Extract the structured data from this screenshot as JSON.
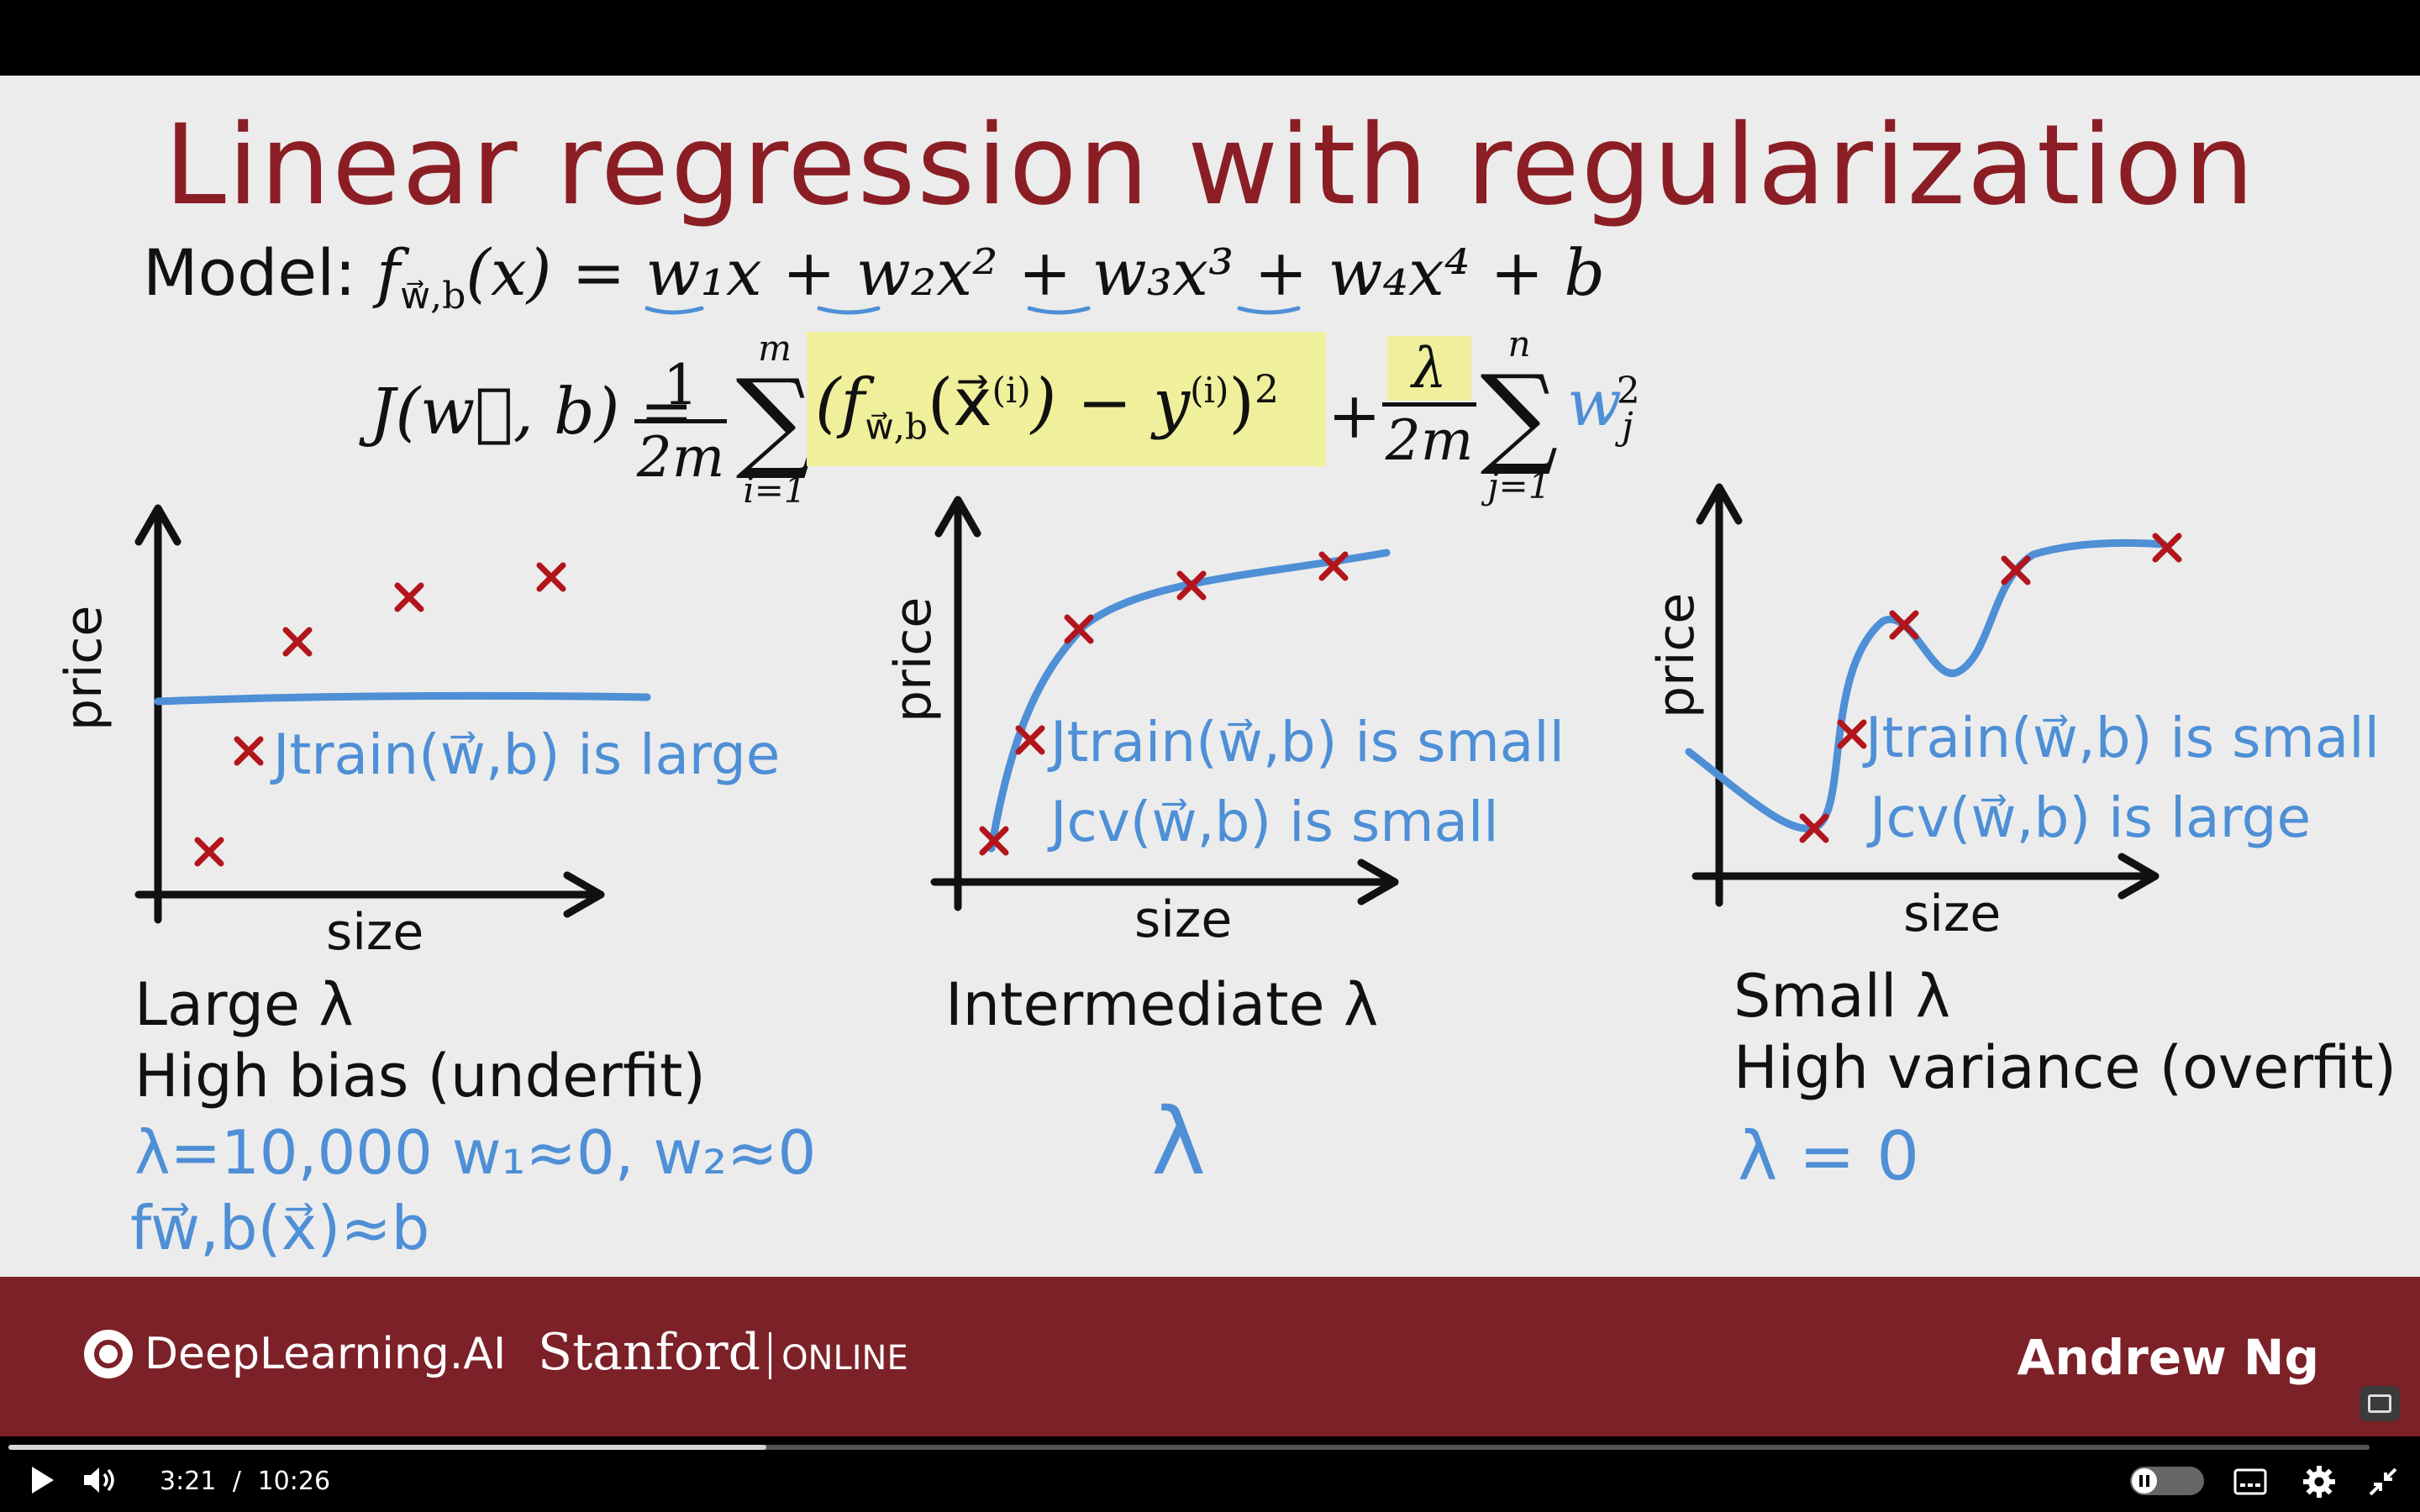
{
  "slide": {
    "title": "Linear regression with regularization",
    "model_label": "Model:",
    "model_formula": {
      "f": "f",
      "sub": "w⃗,b",
      "rest": "(x) = w₁x + w₂x² + w₃x³ + w₄x⁴ + b"
    },
    "cost_formula": {
      "lhs": "J(w⃗, b) =",
      "frac1_num": "1",
      "frac1_den": "2m",
      "sum1_upper": "m",
      "sum1_lower": "i=1",
      "error_term": "(f",
      "error_sub": "w⃗,b",
      "error_rest": "(x⃗",
      "error_sup1": "(i)",
      "error_minus": ") − y",
      "error_sup2": "(i)",
      "error_close": ")",
      "error_power": "2",
      "plus": "+",
      "frac2_num": "λ",
      "frac2_den": "2m",
      "sum2_upper": "n",
      "sum2_lower": "j=1",
      "reg_term": "w",
      "reg_sub": "j",
      "reg_sup": "2"
    },
    "plots": [
      {
        "ylabel": "price",
        "xlabel": "size",
        "caption_line1": "Large λ",
        "caption_line2": "High bias (underfit)",
        "note_train": "Jtrain(w⃗,b) is large",
        "note_lambda": "λ=10,000   w₁≈0, w₂≈0",
        "note_f": "fw⃗,b(x⃗)≈b"
      },
      {
        "ylabel": "price",
        "xlabel": "size",
        "caption_line1": "Intermediate λ",
        "note_train": "Jtrain(w⃗,b) is small",
        "note_cv": "Jcv(w⃗,b) is small",
        "note_lambda": "λ"
      },
      {
        "ylabel": "price",
        "xlabel": "size",
        "caption_line1": "Small λ",
        "caption_line2": "High variance (overfit)",
        "note_train": "Jtrain(w⃗,b) is small",
        "note_cv": "Jcv(w⃗,b) is large",
        "note_lambda": "λ = 0"
      }
    ]
  },
  "footer": {
    "logo_deeplearning": "DeepLearning.AI",
    "logo_stanford": "Stanford",
    "logo_online": "ONLINE",
    "presenter": "Andrew Ng"
  },
  "player": {
    "current_time": "3:21",
    "separator": "/",
    "duration": "10:26",
    "progress_fraction": 0.321
  },
  "colors": {
    "title": "#8b1e24",
    "handwriting": "#4e8fd6",
    "cross": "#b3151c",
    "footer": "#7c2128",
    "highlight": "#f0f09c"
  }
}
